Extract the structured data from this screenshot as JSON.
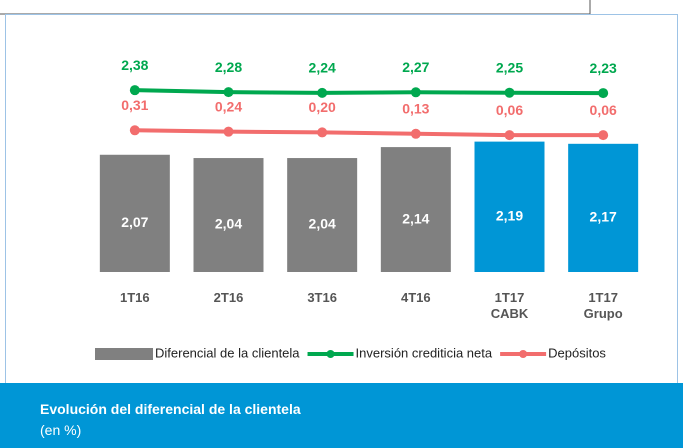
{
  "chart_data": {
    "type": "bar",
    "title": "Evolución del diferencial de la clientela",
    "subtitle": "(en %)",
    "categories": [
      "1T16",
      "2T16",
      "3T16",
      "4T16",
      "1T17\nCABK",
      "1T17\nGrupo"
    ],
    "ylim": [
      1,
      3.3
    ],
    "y2lim": [
      -7,
      6
    ],
    "series": [
      {
        "name": "Diferencial de la clientela",
        "type": "bar",
        "axis": "y",
        "color": "#808080",
        "colors": [
          "#808080",
          "#808080",
          "#808080",
          "#808080",
          "#0096d6",
          "#0096d6"
        ],
        "values": [
          2.07,
          2.04,
          2.04,
          2.14,
          2.19,
          2.17
        ],
        "value_labels": [
          "2,07",
          "2,04",
          "2,04",
          "2,14",
          "2,19",
          "2,17"
        ]
      },
      {
        "name": "Inversión crediticia neta",
        "type": "line",
        "axis": "y2",
        "color": "#00a84f",
        "values": [
          2.38,
          2.28,
          2.24,
          2.27,
          2.25,
          2.23
        ],
        "value_labels": [
          "2,38",
          "2,28",
          "2,24",
          "2,27",
          "2,25",
          "2,23"
        ]
      },
      {
        "name": "Depósitos",
        "type": "line",
        "axis": "y2",
        "color": "#f26d6d",
        "values": [
          0.31,
          0.24,
          0.2,
          0.13,
          0.06,
          0.06
        ],
        "value_labels": [
          "0,31",
          "0,24",
          "0,20",
          "0,13",
          "0,06",
          "0,06"
        ]
      }
    ]
  }
}
